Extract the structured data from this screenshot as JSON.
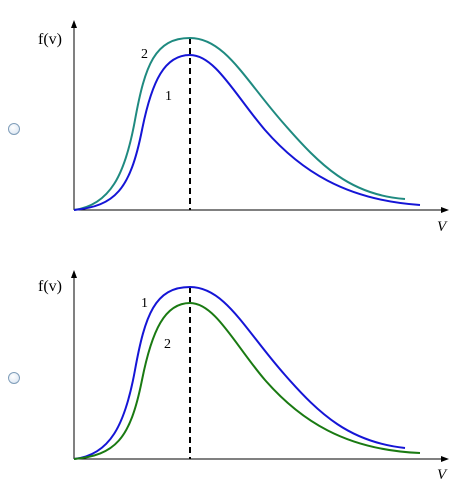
{
  "options": [
    {
      "ylabel": "f(v)",
      "xlabel": "V",
      "curves": [
        {
          "label": "2",
          "color": "#1f8a80"
        },
        {
          "label": "1",
          "color": "#1515d6"
        }
      ]
    },
    {
      "ylabel": "f(v)",
      "xlabel": "V",
      "curves": [
        {
          "label": "1",
          "color": "#1515d6"
        },
        {
          "label": "2",
          "color": "#1a7a12"
        }
      ]
    }
  ]
}
